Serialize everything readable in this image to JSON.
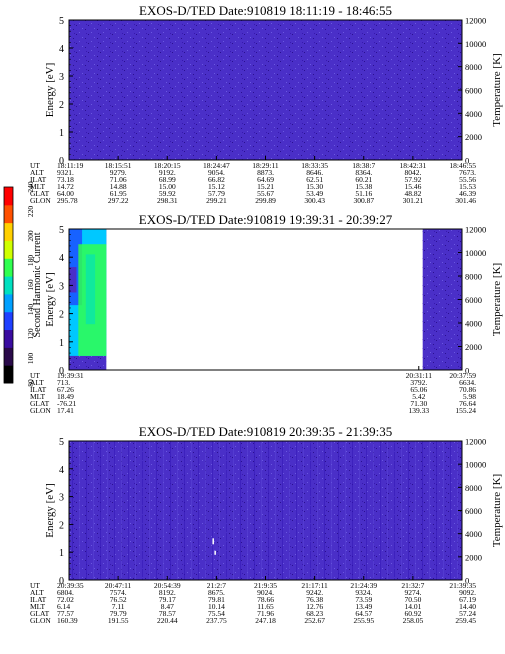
{
  "colors": {
    "background": "#4a2fc8",
    "dark_speckle": "#2a1090",
    "light_speckle": "#6a58e0",
    "colorbar_stops": [
      "#000000",
      "#2a0a4a",
      "#3a0ca0",
      "#1f40ff",
      "#00a0ff",
      "#00e0c0",
      "#30ff50",
      "#d0ff00",
      "#ffd000",
      "#ff5000",
      "#ff0000"
    ]
  },
  "colorbar": {
    "label": "Second Harmonic Current",
    "ticks": [
      "80",
      "100",
      "120",
      "140",
      "160",
      "180",
      "200",
      "220",
      "240"
    ],
    "ticks_top_value": 240,
    "ticks_bottom_value": 80
  },
  "chart_data": [
    {
      "type": "heatmap",
      "title": "EXOS-D/TED   Date:910819  18:11:19 - 18:46:55",
      "ylabel": "Energy [eV]",
      "y2label": "Temperature [K]",
      "ylim": [
        0,
        5
      ],
      "y2lim": [
        0,
        12000
      ],
      "yticks": [
        "0",
        "1",
        "2",
        "3",
        "4",
        "5"
      ],
      "y2ticks": [
        "0",
        "2000",
        "4000",
        "6000",
        "8000",
        "10000",
        "12000"
      ],
      "data_segments": [
        [
          0,
          1
        ]
      ],
      "table": {
        "row_labels": [
          "UT",
          "ALT",
          "ILAT",
          "MLT",
          "GLAT",
          "GLON"
        ],
        "columns": [
          {
            "x": 0.0,
            "values": [
              "18:11:19",
              "9321.",
              "73.18",
              "14.72",
              "64.00",
              "295.78"
            ]
          },
          {
            "x": 0.125,
            "values": [
              "18:15:51",
              "9279.",
              "71.06",
              "14.88",
              "61.95",
              "297.22"
            ]
          },
          {
            "x": 0.25,
            "values": [
              "18:20:15",
              "9192.",
              "68.99",
              "15.00",
              "59.92",
              "298.31"
            ]
          },
          {
            "x": 0.375,
            "values": [
              "18:24:47",
              "9054.",
              "66.82",
              "15.12",
              "57.79",
              "299.21"
            ]
          },
          {
            "x": 0.5,
            "values": [
              "18:29:11",
              "8873.",
              "64.69",
              "15.21",
              "55.67",
              "299.89"
            ]
          },
          {
            "x": 0.625,
            "values": [
              "18:33:35",
              "8646.",
              "62.51",
              "15.30",
              "53.49",
              "300.43"
            ]
          },
          {
            "x": 0.75,
            "values": [
              "18:38:7",
              "8364.",
              "60.21",
              "15.38",
              "51.16",
              "300.87"
            ]
          },
          {
            "x": 0.875,
            "values": [
              "18:42:31",
              "8042.",
              "57.92",
              "15.46",
              "48.82",
              "301.21"
            ]
          },
          {
            "x": 1.0,
            "values": [
              "18:46:55",
              "7673.",
              "55.56",
              "15.53",
              "46.39",
              "301.46"
            ]
          }
        ]
      }
    },
    {
      "type": "heatmap",
      "title": "EXOS-D/TED   Date:910819  19:39:31 - 20:39:27",
      "ylabel": "Energy [eV]",
      "y2label": "Temperature [K]",
      "ylim": [
        0,
        5
      ],
      "y2lim": [
        0,
        12000
      ],
      "yticks": [
        "0",
        "1",
        "2",
        "3",
        "4",
        "5"
      ],
      "y2ticks": [
        "0",
        "2000",
        "4000",
        "6000",
        "8000",
        "10000",
        "12000"
      ],
      "data_segments": [
        [
          0,
          0.095
        ],
        [
          0.9,
          1
        ]
      ],
      "bright_region": {
        "x_range": [
          0.0,
          0.095
        ],
        "energy_range": [
          0.5,
          5
        ]
      },
      "table": {
        "row_labels": [
          "UT",
          "ALT",
          "ILAT",
          "MLT",
          "GLAT",
          "GLON"
        ],
        "columns": [
          {
            "x": 0.0,
            "values": [
              "19:39:31",
              "713.",
              "67.26",
              "18.49",
              "-76.21",
              "17.41"
            ]
          },
          {
            "x": 0.89,
            "values": [
              "20:31:11",
              "3792.",
              "65.06",
              "5.42",
              "71.30",
              "139.33"
            ]
          },
          {
            "x": 1.0,
            "values": [
              "20:37:59",
              "6634.",
              "70.86",
              "5.98",
              "76.64",
              "155.24"
            ]
          }
        ]
      }
    },
    {
      "type": "heatmap",
      "title": "EXOS-D/TED   Date:910819  20:39:35 - 21:39:35",
      "ylabel": "Energy [eV]",
      "y2label": "Temperature [K]",
      "ylim": [
        0,
        5
      ],
      "y2lim": [
        0,
        12000
      ],
      "yticks": [
        "0",
        "1",
        "2",
        "3",
        "4",
        "5"
      ],
      "y2ticks": [
        "0",
        "2000",
        "4000",
        "6000",
        "8000",
        "10000",
        "12000"
      ],
      "data_segments": [
        [
          0,
          1
        ]
      ],
      "table": {
        "row_labels": [
          "UT",
          "ALT",
          "ILAT",
          "MLT",
          "GLAT",
          "GLON"
        ],
        "columns": [
          {
            "x": 0.0,
            "values": [
              "20:39:35",
              "6804.",
              "72.02",
              "6.14",
              "77.57",
              "160.39"
            ]
          },
          {
            "x": 0.125,
            "values": [
              "20:47:11",
              "7574.",
              "76.52",
              "7.11",
              "79.79",
              "191.55"
            ]
          },
          {
            "x": 0.25,
            "values": [
              "20:54:39",
              "8192.",
              "79.17",
              "8.47",
              "78.57",
              "220.44"
            ]
          },
          {
            "x": 0.375,
            "values": [
              "21:2:7",
              "8675.",
              "79.81",
              "10.14",
              "75.54",
              "237.75"
            ]
          },
          {
            "x": 0.5,
            "values": [
              "21:9:35",
              "9024.",
              "78.66",
              "11.65",
              "71.96",
              "247.18"
            ]
          },
          {
            "x": 0.625,
            "values": [
              "21:17:11",
              "9242.",
              "76.38",
              "12.76",
              "68.23",
              "252.67"
            ]
          },
          {
            "x": 0.75,
            "values": [
              "21:24:39",
              "9324.",
              "73.59",
              "13.49",
              "64.57",
              "255.95"
            ]
          },
          {
            "x": 0.875,
            "values": [
              "21:32:7",
              "9274.",
              "70.50",
              "14.01",
              "60.92",
              "258.05"
            ]
          },
          {
            "x": 1.0,
            "values": [
              "21:39:35",
              "9092.",
              "67.19",
              "14.40",
              "57.24",
              "259.45"
            ]
          }
        ]
      }
    }
  ]
}
